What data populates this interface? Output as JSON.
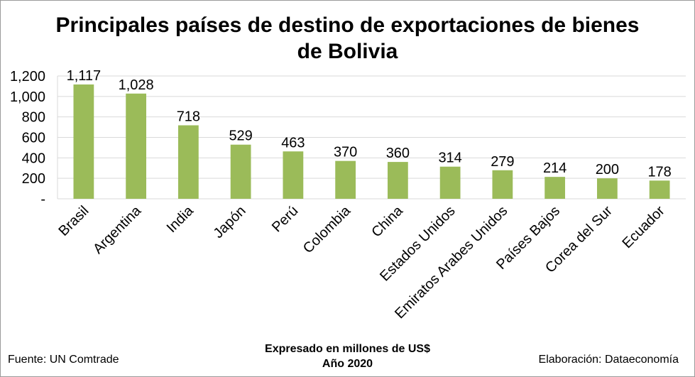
{
  "chart_data": {
    "type": "bar",
    "title_line1": "Principales países de destino de exportaciones de bienes",
    "title_line2": "de Bolivia",
    "categories": [
      "Brasil",
      "Argentina",
      "India",
      "Japón",
      "Perú",
      "Colombia",
      "China",
      "Estados Unidos",
      "Emiratos Arabes Unidos",
      "Países Bajos",
      "Corea del Sur",
      "Ecuador"
    ],
    "values": [
      1117,
      1028,
      718,
      529,
      463,
      370,
      360,
      314,
      279,
      214,
      200,
      178
    ],
    "value_labels": [
      "1,117",
      "1,028",
      "718",
      "529",
      "463",
      "370",
      "360",
      "314",
      "279",
      "214",
      "200",
      "178"
    ],
    "y_ticks": [
      0,
      200,
      400,
      600,
      800,
      1000,
      1200
    ],
    "y_tick_labels": [
      "-",
      "200",
      "400",
      "600",
      "800",
      "1,000",
      "1,200"
    ],
    "ylim": [
      0,
      1200
    ],
    "grid": true,
    "bar_color": "#9bbb59",
    "grid_color": "#d9d9d9",
    "xlabel_line1": "Expresado en millones de US$",
    "xlabel_line2": "Año 2020"
  },
  "footer": {
    "source": "Fuente: UN Comtrade",
    "credit": "Elaboración: Dataeconomía"
  }
}
